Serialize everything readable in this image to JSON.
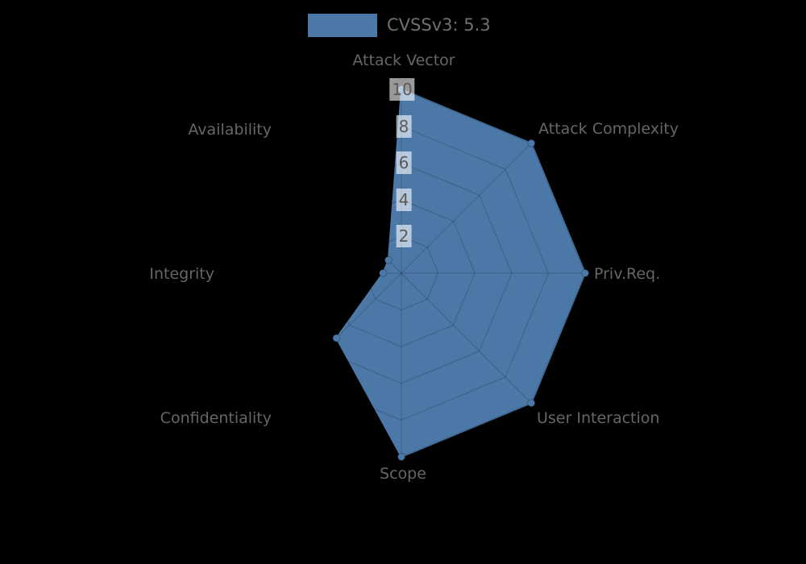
{
  "figure": {
    "background": "#000000"
  },
  "legend": {
    "label": "CVSSv3: 5.3",
    "swatch_color": "#4C78A8",
    "text_color": "#707070"
  },
  "chart_data": {
    "type": "radar",
    "title": "CVSSv3: 5.3",
    "axes": [
      "Attack Vector",
      "Attack Complexity",
      "Priv.Req.",
      "User Interaction",
      "Scope",
      "Confidentiality",
      "Integrity",
      "Availability"
    ],
    "series": [
      {
        "name": "CVSSv3: 5.3",
        "color": "#4C78A8",
        "values": [
          10,
          10,
          10,
          10,
          10,
          5,
          1,
          1
        ]
      }
    ],
    "axis_start_deg": 90,
    "direction": "clockwise",
    "rmax": 10,
    "tick_values": [
      2,
      4,
      6,
      8,
      10
    ],
    "ticks": [
      "2",
      "4",
      "6",
      "8",
      "10"
    ],
    "grid": true,
    "grid_color": "rgba(0,0,0,0.2)",
    "marker_edge_color": "rgba(0,0,0,0.25)",
    "tick_text_color": "#5a5a5a",
    "label_color": "#666666",
    "legend_position": "top-center"
  }
}
